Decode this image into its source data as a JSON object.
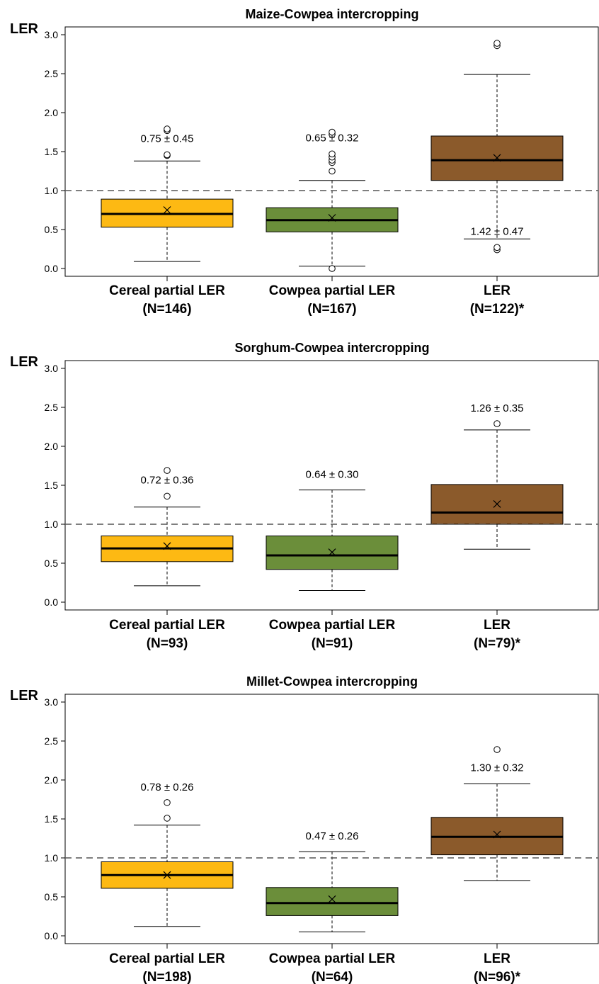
{
  "y_axis_label": "LER",
  "colors": {
    "cereal": "#FDB913",
    "cowpea": "#6B8E3A",
    "ler": "#8B5A2B"
  },
  "chart_data": [
    {
      "type": "box",
      "title": "Maize-Cowpea intercropping",
      "ylabel": "LER",
      "ylim": [
        -0.1,
        3.1
      ],
      "yticks": [
        "0.0",
        "0.5",
        "1.0",
        "1.5",
        "2.0",
        "2.5",
        "3.0"
      ],
      "reference_line": 1.0,
      "categories": [
        {
          "label_line1": "Cereal partial LER",
          "label_line2": "(N=146)",
          "color_key": "cereal",
          "annotation": "0.75 ± 0.45",
          "mean": 0.75,
          "q1": 0.53,
          "median": 0.7,
          "q3": 0.89,
          "whisker_low": 0.09,
          "whisker_high": 1.38,
          "outliers": [
            1.45,
            1.46,
            1.77,
            1.79
          ]
        },
        {
          "label_line1": "Cowpea partial LER",
          "label_line2": "(N=167)",
          "color_key": "cowpea",
          "annotation": "0.65 ± 0.32",
          "mean": 0.65,
          "q1": 0.47,
          "median": 0.62,
          "q3": 0.78,
          "whisker_low": 0.03,
          "whisker_high": 1.13,
          "outliers": [
            0.0,
            1.25,
            1.36,
            1.39,
            1.43,
            1.47,
            1.72,
            1.75
          ]
        },
        {
          "label_line1": "LER",
          "label_line2": "(N=122)*",
          "color_key": "ler",
          "annotation": "1.42 ± 0.47",
          "mean": 1.42,
          "q1": 1.13,
          "median": 1.39,
          "q3": 1.7,
          "whisker_low": 0.38,
          "whisker_high": 2.49,
          "outliers": [
            0.24,
            0.27,
            2.86,
            2.89
          ]
        }
      ]
    },
    {
      "type": "box",
      "title": "Sorghum-Cowpea intercropping",
      "ylabel": "LER",
      "ylim": [
        -0.1,
        3.1
      ],
      "yticks": [
        "0.0",
        "0.5",
        "1.0",
        "1.5",
        "2.0",
        "2.5",
        "3.0"
      ],
      "reference_line": 1.0,
      "categories": [
        {
          "label_line1": "Cereal partial LER",
          "label_line2": "(N=93)",
          "color_key": "cereal",
          "annotation": "0.72 ± 0.36",
          "mean": 0.72,
          "q1": 0.52,
          "median": 0.69,
          "q3": 0.85,
          "whisker_low": 0.21,
          "whisker_high": 1.22,
          "outliers": [
            1.36,
            1.69
          ]
        },
        {
          "label_line1": "Cowpea partial LER",
          "label_line2": "(N=91)",
          "color_key": "cowpea",
          "annotation": "0.64 ± 0.30",
          "mean": 0.64,
          "q1": 0.42,
          "median": 0.6,
          "q3": 0.85,
          "whisker_low": 0.15,
          "whisker_high": 1.44,
          "outliers": []
        },
        {
          "label_line1": "LER",
          "label_line2": "(N=79)*",
          "color_key": "ler",
          "annotation": "1.26 ± 0.35",
          "mean": 1.26,
          "q1": 1.0,
          "median": 1.15,
          "q3": 1.51,
          "whisker_low": 0.68,
          "whisker_high": 2.21,
          "outliers": [
            2.29
          ]
        }
      ]
    },
    {
      "type": "box",
      "title": "Millet-Cowpea intercropping",
      "ylabel": "LER",
      "ylim": [
        -0.1,
        3.1
      ],
      "yticks": [
        "0.0",
        "0.5",
        "1.0",
        "1.5",
        "2.0",
        "2.5",
        "3.0"
      ],
      "reference_line": 1.0,
      "categories": [
        {
          "label_line1": "Cereal partial LER",
          "label_line2": "(N=198)",
          "color_key": "cereal",
          "annotation": "0.78 ± 0.26",
          "mean": 0.78,
          "q1": 0.61,
          "median": 0.78,
          "q3": 0.95,
          "whisker_low": 0.12,
          "whisker_high": 1.42,
          "outliers": [
            1.51,
            1.71
          ]
        },
        {
          "label_line1": "Cowpea partial LER",
          "label_line2": "(N=64)",
          "color_key": "cowpea",
          "annotation": "0.47 ± 0.26",
          "mean": 0.47,
          "q1": 0.26,
          "median": 0.42,
          "q3": 0.62,
          "whisker_low": 0.05,
          "whisker_high": 1.08,
          "outliers": []
        },
        {
          "label_line1": "LER",
          "label_line2": "(N=96)*",
          "color_key": "ler",
          "annotation": "1.30 ± 0.32",
          "mean": 1.3,
          "q1": 1.04,
          "median": 1.27,
          "q3": 1.52,
          "whisker_low": 0.71,
          "whisker_high": 1.95,
          "outliers": [
            2.39
          ]
        }
      ]
    }
  ]
}
